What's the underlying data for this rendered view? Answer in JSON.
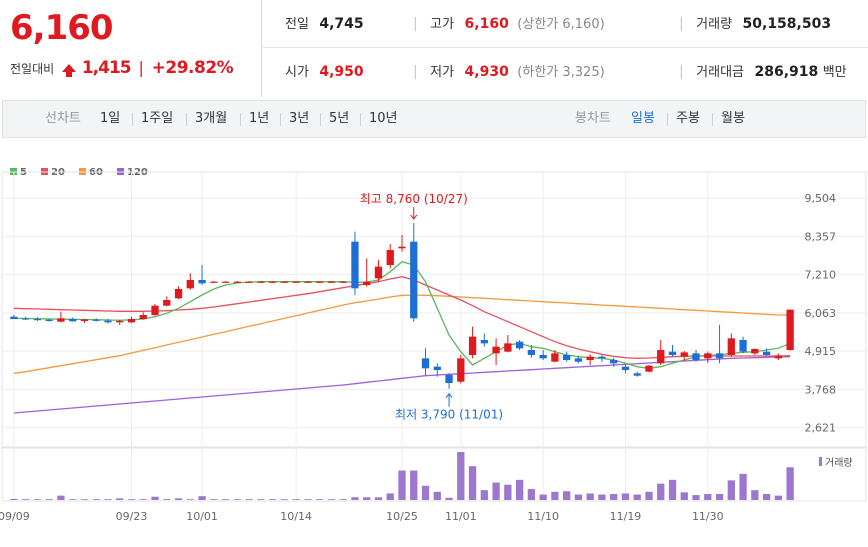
{
  "quote": {
    "current_price": "6,160",
    "change_label": "전일대비",
    "change_amount": "1,415",
    "change_percent": "+29.82%",
    "stats": {
      "prev_close": {
        "label": "전일",
        "value": "4,745"
      },
      "high": {
        "label": "고가",
        "value": "6,160",
        "extra": "(상한가 6,160)"
      },
      "volume": {
        "label": "거래량",
        "value": "50,158,503"
      },
      "open": {
        "label": "시가",
        "value": "4,950"
      },
      "low": {
        "label": "저가",
        "value": "4,930",
        "extra": "(하한가 3,325)"
      },
      "amount": {
        "label": "거래대금",
        "value": "286,918",
        "unit": "백만"
      }
    }
  },
  "toolbar": {
    "line_label": "선차트",
    "periods": [
      "1일",
      "1주일",
      "3개월",
      "1년",
      "3년",
      "5년",
      "10년"
    ],
    "candle_label": "봉차트",
    "candle_types": [
      "일봉",
      "주봉",
      "월봉"
    ],
    "active_candle": "일봉"
  },
  "colors": {
    "up": "#e0191f",
    "down": "#1d6fd6",
    "ma5": "#5cb85c",
    "ma20": "#e8505b",
    "ma60": "#f59a3c",
    "ma120": "#9b63d6",
    "volume": "#9d77cf"
  },
  "chart_data": {
    "type": "candlestick",
    "legend": [
      {
        "name": "5",
        "color": "#5cb85c"
      },
      {
        "name": "20",
        "color": "#e8505b"
      },
      {
        "name": "60",
        "color": "#f59a3c"
      },
      {
        "name": "120",
        "color": "#9b63d6"
      }
    ],
    "y_ticks": [
      "9,504",
      "8,357",
      "7,210",
      "6,063",
      "4,915",
      "3,768",
      "2,621"
    ],
    "y_tick_values": [
      9504,
      8357,
      7210,
      6063,
      4915,
      3768,
      2621
    ],
    "ylim": [
      2100,
      9900
    ],
    "x_tick_labels": [
      "09/09",
      "09/23",
      "10/01",
      "10/14",
      "10/25",
      "11/01",
      "11/10",
      "11/19",
      "11/30"
    ],
    "x_tick_index": [
      0,
      10,
      16,
      24,
      33,
      38,
      45,
      52,
      59
    ],
    "volume_label": "거래량",
    "annotations": [
      {
        "text": "최고 8,760 (10/27)",
        "index": 34,
        "value": 8760,
        "position": "above"
      },
      {
        "text": "최저 3,790 (11/01)",
        "index": 37,
        "value": 3790,
        "position": "below"
      }
    ],
    "candles": [
      {
        "o": 5950,
        "h": 6000,
        "l": 5900,
        "c": 5880
      },
      {
        "o": 5900,
        "h": 5950,
        "l": 5850,
        "c": 5890
      },
      {
        "o": 5880,
        "h": 5940,
        "l": 5820,
        "c": 5850
      },
      {
        "o": 5860,
        "h": 5900,
        "l": 5800,
        "c": 5820
      },
      {
        "o": 5800,
        "h": 6100,
        "l": 5780,
        "c": 5900
      },
      {
        "o": 5880,
        "h": 5920,
        "l": 5800,
        "c": 5810
      },
      {
        "o": 5820,
        "h": 5880,
        "l": 5760,
        "c": 5870
      },
      {
        "o": 5860,
        "h": 5900,
        "l": 5800,
        "c": 5830
      },
      {
        "o": 5830,
        "h": 5880,
        "l": 5740,
        "c": 5780
      },
      {
        "o": 5780,
        "h": 5860,
        "l": 5700,
        "c": 5820
      },
      {
        "o": 5780,
        "h": 5950,
        "l": 5760,
        "c": 5880
      },
      {
        "o": 5880,
        "h": 6080,
        "l": 5860,
        "c": 6000
      },
      {
        "o": 6000,
        "h": 6330,
        "l": 5980,
        "c": 6280
      },
      {
        "o": 6280,
        "h": 6560,
        "l": 6260,
        "c": 6450
      },
      {
        "o": 6500,
        "h": 6860,
        "l": 6480,
        "c": 6780
      },
      {
        "o": 6800,
        "h": 7250,
        "l": 6760,
        "c": 7050
      },
      {
        "o": 7050,
        "h": 7500,
        "l": 6900,
        "c": 6950
      },
      {
        "o": 7000,
        "h": 7020,
        "l": 6980,
        "c": 7000
      },
      {
        "o": 7000,
        "h": 7020,
        "l": 6980,
        "c": 7000
      },
      {
        "o": 7000,
        "h": 7020,
        "l": 6980,
        "c": 7000
      },
      {
        "o": 7000,
        "h": 7020,
        "l": 6980,
        "c": 7000
      },
      {
        "o": 7000,
        "h": 7020,
        "l": 6980,
        "c": 7000
      },
      {
        "o": 7000,
        "h": 7020,
        "l": 6980,
        "c": 7000
      },
      {
        "o": 7000,
        "h": 7020,
        "l": 6980,
        "c": 7000
      },
      {
        "o": 7000,
        "h": 7020,
        "l": 6980,
        "c": 7000
      },
      {
        "o": 7000,
        "h": 7020,
        "l": 6980,
        "c": 7000
      },
      {
        "o": 7000,
        "h": 7020,
        "l": 6980,
        "c": 7000
      },
      {
        "o": 7000,
        "h": 7020,
        "l": 6980,
        "c": 7000
      },
      {
        "o": 7000,
        "h": 7020,
        "l": 6980,
        "c": 7000
      },
      {
        "o": 8200,
        "h": 8500,
        "l": 6600,
        "c": 6800
      },
      {
        "o": 6900,
        "h": 7700,
        "l": 6850,
        "c": 7000
      },
      {
        "o": 7100,
        "h": 7650,
        "l": 7000,
        "c": 7450
      },
      {
        "o": 7500,
        "h": 8130,
        "l": 7400,
        "c": 7950
      },
      {
        "o": 8000,
        "h": 8400,
        "l": 7900,
        "c": 8050
      },
      {
        "o": 8200,
        "h": 8760,
        "l": 5800,
        "c": 5900
      },
      {
        "o": 4700,
        "h": 5000,
        "l": 4200,
        "c": 4400
      },
      {
        "o": 4450,
        "h": 4550,
        "l": 4150,
        "c": 4350
      },
      {
        "o": 4200,
        "h": 4250,
        "l": 3790,
        "c": 3960
      },
      {
        "o": 4000,
        "h": 4800,
        "l": 3950,
        "c": 4700
      },
      {
        "o": 4800,
        "h": 5650,
        "l": 4700,
        "c": 5350
      },
      {
        "o": 5250,
        "h": 5450,
        "l": 5050,
        "c": 5150
      },
      {
        "o": 4850,
        "h": 5300,
        "l": 4500,
        "c": 5050
      },
      {
        "o": 4900,
        "h": 5400,
        "l": 4880,
        "c": 5150
      },
      {
        "o": 5200,
        "h": 5250,
        "l": 4950,
        "c": 5000
      },
      {
        "o": 4950,
        "h": 5100,
        "l": 4720,
        "c": 4800
      },
      {
        "o": 4800,
        "h": 4950,
        "l": 4650,
        "c": 4700
      },
      {
        "o": 4600,
        "h": 4950,
        "l": 4580,
        "c": 4850
      },
      {
        "o": 4800,
        "h": 4900,
        "l": 4600,
        "c": 4650
      },
      {
        "o": 4700,
        "h": 4780,
        "l": 4550,
        "c": 4600
      },
      {
        "o": 4650,
        "h": 4820,
        "l": 4500,
        "c": 4750
      },
      {
        "o": 4750,
        "h": 4800,
        "l": 4600,
        "c": 4700
      },
      {
        "o": 4650,
        "h": 4720,
        "l": 4450,
        "c": 4550
      },
      {
        "o": 4450,
        "h": 4500,
        "l": 4250,
        "c": 4350
      },
      {
        "o": 4250,
        "h": 4300,
        "l": 4150,
        "c": 4180
      },
      {
        "o": 4300,
        "h": 4500,
        "l": 4280,
        "c": 4480
      },
      {
        "o": 4550,
        "h": 5250,
        "l": 4500,
        "c": 4950
      },
      {
        "o": 4900,
        "h": 5100,
        "l": 4750,
        "c": 4800
      },
      {
        "o": 4750,
        "h": 4920,
        "l": 4620,
        "c": 4880
      },
      {
        "o": 4850,
        "h": 4950,
        "l": 4600,
        "c": 4650
      },
      {
        "o": 4700,
        "h": 4900,
        "l": 4560,
        "c": 4850
      },
      {
        "o": 4850,
        "h": 5700,
        "l": 4550,
        "c": 4700
      },
      {
        "o": 4800,
        "h": 5450,
        "l": 4750,
        "c": 5300
      },
      {
        "o": 5250,
        "h": 5350,
        "l": 4850,
        "c": 4900
      },
      {
        "o": 4850,
        "h": 5000,
        "l": 4800,
        "c": 4980
      },
      {
        "o": 4900,
        "h": 5000,
        "l": 4780,
        "c": 4800
      },
      {
        "o": 4700,
        "h": 4850,
        "l": 4650,
        "c": 4780
      },
      {
        "o": 4950,
        "h": 6160,
        "l": 4930,
        "c": 6160
      }
    ],
    "volume": [
      2,
      0,
      1,
      0,
      8,
      0,
      0,
      0,
      1,
      3,
      0,
      1,
      6,
      1,
      3,
      0,
      7,
      0,
      0,
      0,
      0,
      0,
      0,
      0,
      0,
      0,
      0,
      0,
      0,
      5,
      5,
      5,
      12,
      54,
      54,
      26,
      15,
      4,
      88,
      62,
      18,
      32,
      28,
      37,
      20,
      10,
      15,
      16,
      10,
      12,
      10,
      11,
      12,
      10,
      15,
      30,
      37,
      14,
      9,
      11,
      11,
      36,
      48,
      18,
      11,
      8,
      60
    ],
    "ma5": [
      5900,
      5895,
      5890,
      5880,
      5875,
      5870,
      5865,
      5860,
      5850,
      5840,
      5855,
      5880,
      5950,
      6050,
      6200,
      6400,
      6600,
      6780,
      6900,
      6960,
      6990,
      7000,
      7000,
      7000,
      7000,
      7000,
      7000,
      7000,
      7000,
      6980,
      6990,
      7050,
      7300,
      7600,
      7500,
      7000,
      6200,
      5400,
      4900,
      4500,
      4700,
      4900,
      5100,
      5150,
      5050,
      5000,
      4900,
      4800,
      4750,
      4720,
      4700,
      4650,
      4550,
      4450,
      4400,
      4450,
      4550,
      4650,
      4750,
      4800,
      4800,
      4850,
      4880,
      4900,
      4950,
      5000,
      5150
    ],
    "ma20": [
      6200,
      6190,
      6180,
      6170,
      6160,
      6150,
      6140,
      6130,
      6120,
      6110,
      6110,
      6110,
      6120,
      6130,
      6150,
      6170,
      6200,
      6240,
      6290,
      6340,
      6390,
      6440,
      6490,
      6540,
      6590,
      6640,
      6700,
      6760,
      6820,
      6880,
      6940,
      7000,
      7080,
      7150,
      7050,
      6900,
      6750,
      6600,
      6450,
      6280,
      6100,
      5950,
      5800,
      5650,
      5500,
      5350,
      5200,
      5080,
      4980,
      4900,
      4820,
      4760,
      4720,
      4700,
      4710,
      4730,
      4750,
      4760,
      4770,
      4770,
      4770,
      4770,
      4770,
      4770,
      4770,
      4770,
      4780
    ],
    "ma60": [
      4250,
      4300,
      4360,
      4420,
      4480,
      4540,
      4600,
      4660,
      4720,
      4780,
      4860,
      4940,
      5020,
      5100,
      5180,
      5260,
      5340,
      5420,
      5500,
      5580,
      5660,
      5740,
      5820,
      5900,
      5980,
      6060,
      6140,
      6220,
      6300,
      6370,
      6420,
      6480,
      6540,
      6590,
      6600,
      6590,
      6580,
      6560,
      6540,
      6520,
      6500,
      6480,
      6460,
      6440,
      6420,
      6400,
      6380,
      6360,
      6340,
      6320,
      6300,
      6280,
      6260,
      6240,
      6220,
      6200,
      6180,
      6160,
      6140,
      6120,
      6100,
      6080,
      6060,
      6040,
      6020,
      6000,
      6000
    ],
    "ma120": [
      3060,
      3090,
      3120,
      3150,
      3180,
      3210,
      3240,
      3270,
      3300,
      3330,
      3360,
      3390,
      3420,
      3450,
      3480,
      3510,
      3540,
      3570,
      3600,
      3630,
      3660,
      3690,
      3720,
      3750,
      3780,
      3810,
      3840,
      3870,
      3900,
      3940,
      3980,
      4020,
      4060,
      4100,
      4140,
      4180,
      4200,
      4220,
      4240,
      4260,
      4280,
      4300,
      4320,
      4340,
      4360,
      4380,
      4400,
      4420,
      4440,
      4460,
      4480,
      4500,
      4520,
      4540,
      4560,
      4580,
      4600,
      4620,
      4640,
      4660,
      4680,
      4700,
      4710,
      4720,
      4730,
      4740,
      4750
    ]
  }
}
